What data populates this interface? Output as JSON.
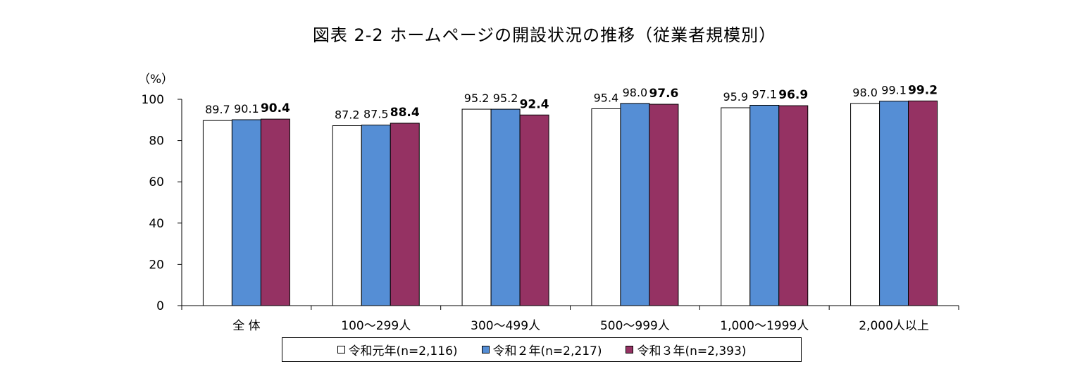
{
  "chart_data": {
    "type": "bar",
    "title": "図表 2-2 ホームページの開設状況の推移（従業者規模別）",
    "ylabel": "（%）",
    "ylim": [
      0,
      100
    ],
    "yticks": [
      0,
      20,
      40,
      60,
      80,
      100
    ],
    "categories": [
      "全 体",
      "100～299人",
      "300～499人",
      "500～999人",
      "1,000～1999人",
      "2,000人以上"
    ],
    "series": [
      {
        "name": "令和元年(n=2,116)",
        "color": "#ffffff",
        "values": [
          89.7,
          87.2,
          95.2,
          95.4,
          95.9,
          98.0
        ],
        "labels": [
          "89.7",
          "87.2",
          "95.2",
          "95.4",
          "95.9",
          "98.0"
        ],
        "bold": false
      },
      {
        "name": "令和２年(n=2,217)",
        "color": "#558ed5",
        "values": [
          90.1,
          87.5,
          95.2,
          98.0,
          97.1,
          99.1
        ],
        "labels": [
          "90.1",
          "87.5",
          "95.2",
          "98.0",
          "97.1",
          "99.1"
        ],
        "bold": false
      },
      {
        "name": "令和３年(n=2,393)",
        "color": "#953263",
        "values": [
          90.4,
          88.4,
          92.4,
          97.6,
          96.9,
          99.2
        ],
        "labels": [
          "90.4",
          "88.4",
          "92.4",
          "97.6",
          "96.9",
          "99.2"
        ],
        "bold": true
      }
    ],
    "legend_position": "bottom",
    "grid": false
  }
}
